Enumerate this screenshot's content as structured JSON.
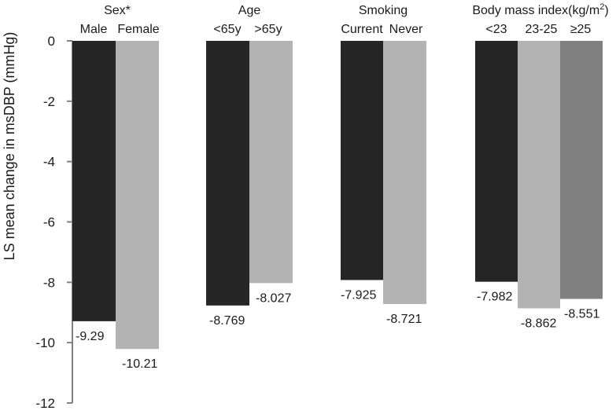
{
  "chart_data": {
    "type": "bar",
    "ylabel": "LS mean change in msDBP (mmHg)",
    "ylim": [
      -12,
      0
    ],
    "yticks": [
      0,
      -2,
      -4,
      -6,
      -8,
      -10,
      -12
    ],
    "grid": false,
    "colors": {
      "dark": "#262626",
      "light": "#b3b3b3",
      "mid": "#808080"
    },
    "groups": [
      {
        "title": "Sex*",
        "bars": [
          {
            "label": "Male",
            "value": -9.29,
            "value_label": "-9.29",
            "color": "dark"
          },
          {
            "label": "Female",
            "value": -10.21,
            "value_label": "-10.21",
            "color": "light"
          }
        ]
      },
      {
        "title": "Age",
        "bars": [
          {
            "label": "<65y",
            "value": -8.769,
            "value_label": "-8.769",
            "color": "dark"
          },
          {
            "label": ">65y",
            "value": -8.027,
            "value_label": "-8.027",
            "color": "light"
          }
        ]
      },
      {
        "title": "Smoking",
        "bars": [
          {
            "label": "Current",
            "value": -7.925,
            "value_label": "-7.925",
            "color": "dark"
          },
          {
            "label": "Never",
            "value": -8.721,
            "value_label": "-8.721",
            "color": "light"
          }
        ]
      },
      {
        "title": "Body mass index(kg/m",
        "title_sup": "2",
        "title_end": ")",
        "bars": [
          {
            "label": "<23",
            "value": -7.982,
            "value_label": "-7.982",
            "color": "dark"
          },
          {
            "label": "23-25",
            "value": -8.862,
            "value_label": "-8.862",
            "color": "light"
          },
          {
            "label": "≥25",
            "value": -8.551,
            "value_label": "-8.551",
            "color": "mid"
          }
        ]
      }
    ]
  }
}
